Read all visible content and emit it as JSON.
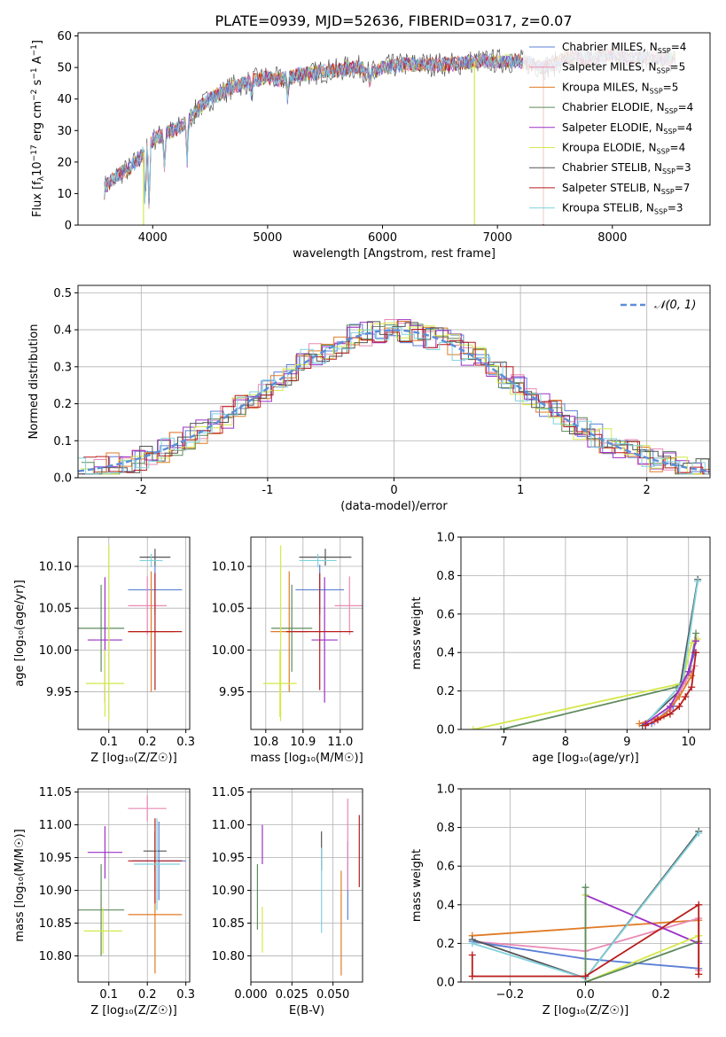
{
  "figure": {
    "title": "PLATE=0939, MJD=52636, FIBERID=0317, z=0.07"
  },
  "colors": {
    "Chabrier MILES": "#5b7fd6",
    "Salpeter MILES": "#e98ab5",
    "Kroupa MILES": "#e07b25",
    "Chabrier ELODIE": "#5e8b5e",
    "Salpeter ELODIE": "#9b30c6",
    "Kroupa ELODIE": "#d4e84a",
    "Chabrier STELIB": "#555555",
    "Salpeter STELIB": "#b81d1d",
    "Kroupa STELIB": "#7fd2dd",
    "normal": "#5b8ed8"
  },
  "chart_data": [
    {
      "id": "spectrum",
      "type": "line",
      "title": "PLATE=0939, MJD=52636, FIBERID=0317, z=0.07",
      "xlabel": "wavelength [Angstrom, rest frame]",
      "ylabel": "Flux [f",
      "xlim": [
        3350,
        8850
      ],
      "ylim": [
        0,
        61
      ],
      "xticks": [
        4000,
        5000,
        6000,
        7000,
        8000
      ],
      "yticks": [
        0,
        10,
        20,
        30,
        40,
        50,
        60
      ],
      "legend_position": "right",
      "legend": [
        {
          "model": "Chabrier MILES",
          "nssp": "4"
        },
        {
          "model": "Salpeter MILES",
          "nssp": "5"
        },
        {
          "model": "Kroupa MILES",
          "nssp": "5"
        },
        {
          "model": "Chabrier ELODIE",
          "nssp": "4"
        },
        {
          "model": "Salpeter ELODIE",
          "nssp": "4"
        },
        {
          "model": "Kroupa ELODIE",
          "nssp": "4"
        },
        {
          "model": "Chabrier STELIB",
          "nssp": "3"
        },
        {
          "model": "Salpeter STELIB",
          "nssp": "7"
        },
        {
          "model": "Kroupa STELIB",
          "nssp": "3"
        }
      ],
      "continuum": [
        [
          3580,
          12
        ],
        [
          3700,
          16
        ],
        [
          3800,
          18
        ],
        [
          3900,
          22
        ],
        [
          4000,
          27
        ],
        [
          4100,
          29
        ],
        [
          4200,
          30
        ],
        [
          4300,
          33
        ],
        [
          4400,
          37
        ],
        [
          4500,
          40
        ],
        [
          4600,
          42
        ],
        [
          4700,
          44
        ],
        [
          4800,
          45
        ],
        [
          4900,
          46
        ],
        [
          5000,
          47
        ],
        [
          5100,
          46
        ],
        [
          5200,
          47
        ],
        [
          5300,
          48
        ],
        [
          5400,
          48
        ],
        [
          5500,
          49
        ],
        [
          5600,
          49
        ],
        [
          5700,
          50
        ],
        [
          5800,
          50
        ],
        [
          5900,
          48
        ],
        [
          6000,
          50
        ],
        [
          6200,
          51
        ],
        [
          6400,
          51
        ],
        [
          6600,
          51
        ],
        [
          6800,
          52
        ],
        [
          7000,
          52
        ],
        [
          7200,
          52
        ],
        [
          7300,
          51
        ],
        [
          7400,
          50
        ],
        [
          7500,
          51
        ],
        [
          7600,
          53
        ],
        [
          7800,
          53
        ],
        [
          8000,
          54
        ],
        [
          8200,
          53
        ],
        [
          8400,
          53
        ],
        [
          8550,
          52
        ]
      ],
      "dips": [
        [
          3934,
          5
        ],
        [
          3969,
          4
        ],
        [
          4102,
          18
        ],
        [
          4300,
          20
        ],
        [
          4861,
          41
        ],
        [
          5175,
          39
        ],
        [
          5890,
          44
        ],
        [
          6563,
          55
        ]
      ],
      "model_dropouts": [
        {
          "model": "Kroupa ELODIE",
          "x": 3920,
          "to": 0
        },
        {
          "model": "Kroupa ELODIE",
          "x": 6800,
          "to": 0
        },
        {
          "model": "Salpeter STELIB",
          "x": 7400,
          "to": 0
        }
      ]
    },
    {
      "id": "residual-histogram",
      "type": "bar",
      "xlabel": "(data-model)/error",
      "ylabel": "Normed distribution",
      "xlim": [
        -2.5,
        2.5
      ],
      "ylim": [
        0,
        0.52
      ],
      "xticks": [
        -2,
        -1,
        0,
        1,
        2
      ],
      "yticks": [
        0.0,
        0.1,
        0.2,
        0.3,
        0.4,
        0.5
      ],
      "legend_position": "top-right",
      "legend_label": "𝒩(0, 1)",
      "bin_width": 0.1,
      "series_note_models": [
        "Chabrier MILES",
        "Salpeter MILES",
        "Kroupa MILES",
        "Chabrier ELODIE",
        "Salpeter ELODIE",
        "Kroupa ELODIE",
        "Chabrier STELIB",
        "Salpeter STELIB",
        "Kroupa STELIB"
      ]
    },
    {
      "id": "age-vs-Z",
      "type": "scatter",
      "xlabel": "Z [log₁₀(Z/Z☉)]",
      "ylabel": "age  [log₁₀(age/yr)]",
      "xlim": [
        0.02,
        0.31
      ],
      "ylim": [
        9.905,
        10.135
      ],
      "xticks": [
        0.1,
        0.2,
        0.3
      ],
      "yticks": [
        9.95,
        10.0,
        10.05,
        10.1
      ],
      "points": [
        {
          "model": "Chabrier MILES",
          "x": 0.22,
          "xerr": 0.07,
          "y": 10.072,
          "yerr": 0.03
        },
        {
          "model": "Salpeter MILES",
          "x": 0.2,
          "xerr": 0.05,
          "y": 10.053,
          "yerr": 0.035
        },
        {
          "model": "Kroupa MILES",
          "x": 0.21,
          "xerr": 0.06,
          "y": 10.022,
          "yerr": 0.072
        },
        {
          "model": "Chabrier ELODIE",
          "x": 0.08,
          "xerr": 0.06,
          "y": 10.026,
          "yerr": 0.052
        },
        {
          "model": "Salpeter ELODIE",
          "x": 0.09,
          "xerr": 0.045,
          "y": 10.012,
          "yerr": 0.075
        },
        {
          "model": "Kroupa ELODIE",
          "x": 0.09,
          "xerr": 0.05,
          "y": 9.96,
          "yerr": 0.04
        },
        {
          "model": "Chabrier STELIB",
          "x": 0.22,
          "xerr": 0.04,
          "y": 10.111,
          "yerr": 0.01
        },
        {
          "model": "Salpeter STELIB",
          "x": 0.22,
          "xerr": 0.07,
          "y": 10.022,
          "yerr": 0.07
        },
        {
          "model": "Kroupa STELIB",
          "x": 0.21,
          "xerr": 0.03,
          "y": 10.107,
          "yerr": 0.008
        },
        {
          "model": "Kroupa ELODIE",
          "x": 0.1,
          "xerr": 0.0,
          "y": 10.02,
          "yerr": 0.105
        }
      ]
    },
    {
      "id": "age-vs-mass",
      "type": "scatter",
      "xlabel": "mass [log₁₀(M/M☉)]",
      "ylabel": "",
      "xlim": [
        10.76,
        11.06
      ],
      "ylim": [
        9.905,
        10.135
      ],
      "xticks": [
        10.8,
        10.9,
        11.0
      ],
      "yticks": [
        9.95,
        10.0,
        10.05,
        10.1
      ],
      "points": [
        {
          "model": "Chabrier MILES",
          "x": 10.945,
          "xerr": 0.065,
          "y": 10.072,
          "yerr": 0.03
        },
        {
          "model": "Salpeter MILES",
          "x": 11.025,
          "xerr": 0.04,
          "y": 10.053,
          "yerr": 0.035
        },
        {
          "model": "Kroupa MILES",
          "x": 10.863,
          "xerr": 0.05,
          "y": 10.022,
          "yerr": 0.072
        },
        {
          "model": "Chabrier ELODIE",
          "x": 10.87,
          "xerr": 0.055,
          "y": 10.026,
          "yerr": 0.052
        },
        {
          "model": "Salpeter ELODIE",
          "x": 10.958,
          "xerr": 0.035,
          "y": 10.012,
          "yerr": 0.075
        },
        {
          "model": "Kroupa ELODIE",
          "x": 10.838,
          "xerr": 0.045,
          "y": 9.96,
          "yerr": 0.04
        },
        {
          "model": "Chabrier STELIB",
          "x": 10.96,
          "xerr": 0.07,
          "y": 10.111,
          "yerr": 0.01
        },
        {
          "model": "Salpeter STELIB",
          "x": 10.945,
          "xerr": 0.09,
          "y": 10.022,
          "yerr": 0.07
        },
        {
          "model": "Kroupa STELIB",
          "x": 10.94,
          "xerr": 0.05,
          "y": 10.107,
          "yerr": 0.008
        },
        {
          "model": "Kroupa ELODIE",
          "x": 10.84,
          "xerr": 0.0,
          "y": 10.02,
          "yerr": 0.105
        }
      ]
    },
    {
      "id": "mass-weight-vs-age",
      "type": "line",
      "xlabel": "age  [log₁₀(age/yr)]",
      "ylabel": "mass weight",
      "xlim": [
        6.3,
        10.35
      ],
      "ylim": [
        0,
        1.0
      ],
      "xticks": [
        7,
        8,
        9,
        10
      ],
      "yticks": [
        0.0,
        0.2,
        0.4,
        0.6,
        0.8,
        1.0
      ],
      "series": [
        {
          "model": "Chabrier ELODIE",
          "values": [
            [
              6.95,
              0.0
            ],
            [
              9.8,
              0.22
            ],
            [
              10.02,
              0.3
            ],
            [
              10.12,
              0.5
            ]
          ]
        },
        {
          "model": "Kroupa ELODIE",
          "values": [
            [
              6.5,
              0.0
            ],
            [
              9.9,
              0.24
            ],
            [
              10.05,
              0.45
            ],
            [
              10.15,
              0.47
            ]
          ]
        },
        {
          "model": "Chabrier STELIB",
          "values": [
            [
              9.25,
              0.02
            ],
            [
              9.85,
              0.2
            ],
            [
              10.15,
              0.78
            ]
          ]
        },
        {
          "model": "Kroupa STELIB",
          "values": [
            [
              9.3,
              0.03
            ],
            [
              9.9,
              0.24
            ],
            [
              10.15,
              0.77
            ]
          ]
        },
        {
          "model": "Chabrier MILES",
          "values": [
            [
              9.4,
              0.03
            ],
            [
              9.75,
              0.12
            ],
            [
              10.0,
              0.3
            ],
            [
              10.1,
              0.4
            ]
          ]
        },
        {
          "model": "Salpeter MILES",
          "values": [
            [
              9.45,
              0.04
            ],
            [
              9.7,
              0.1
            ],
            [
              9.95,
              0.25
            ],
            [
              10.1,
              0.33
            ]
          ]
        },
        {
          "model": "Kroupa MILES",
          "values": [
            [
              9.2,
              0.03
            ],
            [
              9.6,
              0.07
            ],
            [
              9.85,
              0.17
            ],
            [
              10.05,
              0.28
            ]
          ]
        },
        {
          "model": "Salpeter ELODIE",
          "values": [
            [
              9.3,
              0.03
            ],
            [
              9.7,
              0.12
            ],
            [
              10.0,
              0.3
            ],
            [
              10.12,
              0.46
            ]
          ]
        },
        {
          "model": "Salpeter STELIB",
          "values": [
            [
              9.3,
              0.02
            ],
            [
              9.5,
              0.05
            ],
            [
              9.7,
              0.08
            ],
            [
              9.85,
              0.12
            ],
            [
              9.95,
              0.17
            ],
            [
              10.05,
              0.22
            ],
            [
              10.12,
              0.4
            ]
          ]
        }
      ]
    },
    {
      "id": "mass-vs-Z",
      "type": "scatter",
      "xlabel": "Z [log₁₀(Z/Z☉)]",
      "ylabel": "mass [log₁₀(M/M☉)]",
      "xlim": [
        0.02,
        0.31
      ],
      "ylim": [
        10.76,
        11.055
      ],
      "xticks": [
        0.1,
        0.2,
        0.3
      ],
      "yticks": [
        10.8,
        10.85,
        10.9,
        10.95,
        11.0,
        11.05
      ],
      "points": [
        {
          "model": "Chabrier MILES",
          "x": 0.23,
          "xerr": 0.07,
          "y": 10.945,
          "yerr": 0.06
        },
        {
          "model": "Salpeter MILES",
          "x": 0.2,
          "xerr": 0.05,
          "y": 11.025,
          "yerr": 0.02
        },
        {
          "model": "Kroupa MILES",
          "x": 0.22,
          "xerr": 0.07,
          "y": 10.863,
          "yerr": 0.09
        },
        {
          "model": "Chabrier ELODIE",
          "x": 0.08,
          "xerr": 0.06,
          "y": 10.87,
          "yerr": 0.07
        },
        {
          "model": "Salpeter ELODIE",
          "x": 0.09,
          "xerr": 0.045,
          "y": 10.958,
          "yerr": 0.04
        },
        {
          "model": "Kroupa ELODIE",
          "x": 0.085,
          "xerr": 0.05,
          "y": 10.838,
          "yerr": 0.035
        },
        {
          "model": "Chabrier STELIB",
          "x": 0.22,
          "xerr": 0.03,
          "y": 10.96,
          "yerr": 0.03
        },
        {
          "model": "Salpeter STELIB",
          "x": 0.22,
          "xerr": 0.07,
          "y": 10.945,
          "yerr": 0.065
        },
        {
          "model": "Kroupa STELIB",
          "x": 0.225,
          "xerr": 0.06,
          "y": 10.94,
          "yerr": 0.07
        }
      ]
    },
    {
      "id": "mass-vs-ebv",
      "type": "scatter",
      "xlabel": "E(B-V)",
      "ylabel": "",
      "xlim": [
        0,
        0.068
      ],
      "ylim": [
        10.76,
        11.055
      ],
      "xticks": [
        0.0,
        0.025,
        0.05
      ],
      "yticks": [
        10.8,
        10.85,
        10.9,
        10.95,
        11.0,
        11.05
      ],
      "points": [
        {
          "model": "Chabrier MILES",
          "x": 0.059,
          "y": 10.915,
          "yerr": 0.06
        },
        {
          "model": "Salpeter MILES",
          "x": 0.059,
          "y": 10.97,
          "yerr": 0.07
        },
        {
          "model": "Kroupa MILES",
          "x": 0.055,
          "y": 10.85,
          "yerr": 0.08
        },
        {
          "model": "Chabrier ELODIE",
          "x": 0.004,
          "y": 10.89,
          "yerr": 0.05
        },
        {
          "model": "Salpeter ELODIE",
          "x": 0.007,
          "y": 10.97,
          "yerr": 0.03
        },
        {
          "model": "Kroupa ELODIE",
          "x": 0.007,
          "y": 10.84,
          "yerr": 0.035
        },
        {
          "model": "Chabrier STELIB",
          "x": 0.043,
          "y": 10.96,
          "yerr": 0.03
        },
        {
          "model": "Salpeter STELIB",
          "x": 0.066,
          "y": 10.96,
          "yerr": 0.055
        },
        {
          "model": "Kroupa STELIB",
          "x": 0.043,
          "y": 10.9,
          "yerr": 0.065
        }
      ]
    },
    {
      "id": "mass-weight-vs-Z",
      "type": "line",
      "xlabel": "Z [log₁₀(Z/Z☉)]",
      "ylabel": "mass weight",
      "xlim": [
        -0.33,
        0.33
      ],
      "ylim": [
        0,
        1.0
      ],
      "xticks": [
        -0.2,
        0.0,
        0.2
      ],
      "yticks": [
        0.0,
        0.2,
        0.4,
        0.6,
        0.8,
        1.0
      ],
      "series": [
        {
          "model": "Kroupa MILES",
          "values": [
            [
              -0.3,
              0.24
            ],
            [
              0.0,
              0.28
            ],
            [
              0.3,
              0.32
            ],
            [
              0.3,
              0.04
            ]
          ]
        },
        {
          "model": "Salpeter MILES",
          "values": [
            [
              -0.3,
              0.21
            ],
            [
              0.0,
              0.16
            ],
            [
              0.3,
              0.33
            ],
            [
              0.3,
              0.06
            ]
          ]
        },
        {
          "model": "Chabrier MILES",
          "values": [
            [
              -0.3,
              0.21
            ],
            [
              0.0,
              0.12
            ],
            [
              0.3,
              0.07
            ]
          ]
        },
        {
          "model": "Salpeter ELODIE",
          "values": [
            [
              0.0,
              0.45
            ],
            [
              0.3,
              0.2
            ]
          ]
        },
        {
          "model": "Kroupa ELODIE",
          "values": [
            [
              0.0,
              0.45
            ],
            [
              0.0,
              0.0
            ],
            [
              0.3,
              0.24
            ]
          ]
        },
        {
          "model": "Chabrier ELODIE",
          "values": [
            [
              0.0,
              0.49
            ],
            [
              0.0,
              0.0
            ],
            [
              0.3,
              0.21
            ]
          ]
        },
        {
          "model": "Chabrier STELIB",
          "values": [
            [
              -0.3,
              0.22
            ],
            [
              0.0,
              0.02
            ],
            [
              0.3,
              0.78
            ]
          ]
        },
        {
          "model": "Kroupa STELIB",
          "values": [
            [
              -0.3,
              0.2
            ],
            [
              0.0,
              0.02
            ],
            [
              0.3,
              0.77
            ]
          ]
        },
        {
          "model": "Salpeter STELIB",
          "values": [
            [
              -0.3,
              0.14
            ],
            [
              -0.3,
              0.03
            ],
            [
              0.0,
              0.03
            ],
            [
              0.3,
              0.4
            ],
            [
              0.3,
              0.04
            ]
          ]
        }
      ]
    }
  ]
}
